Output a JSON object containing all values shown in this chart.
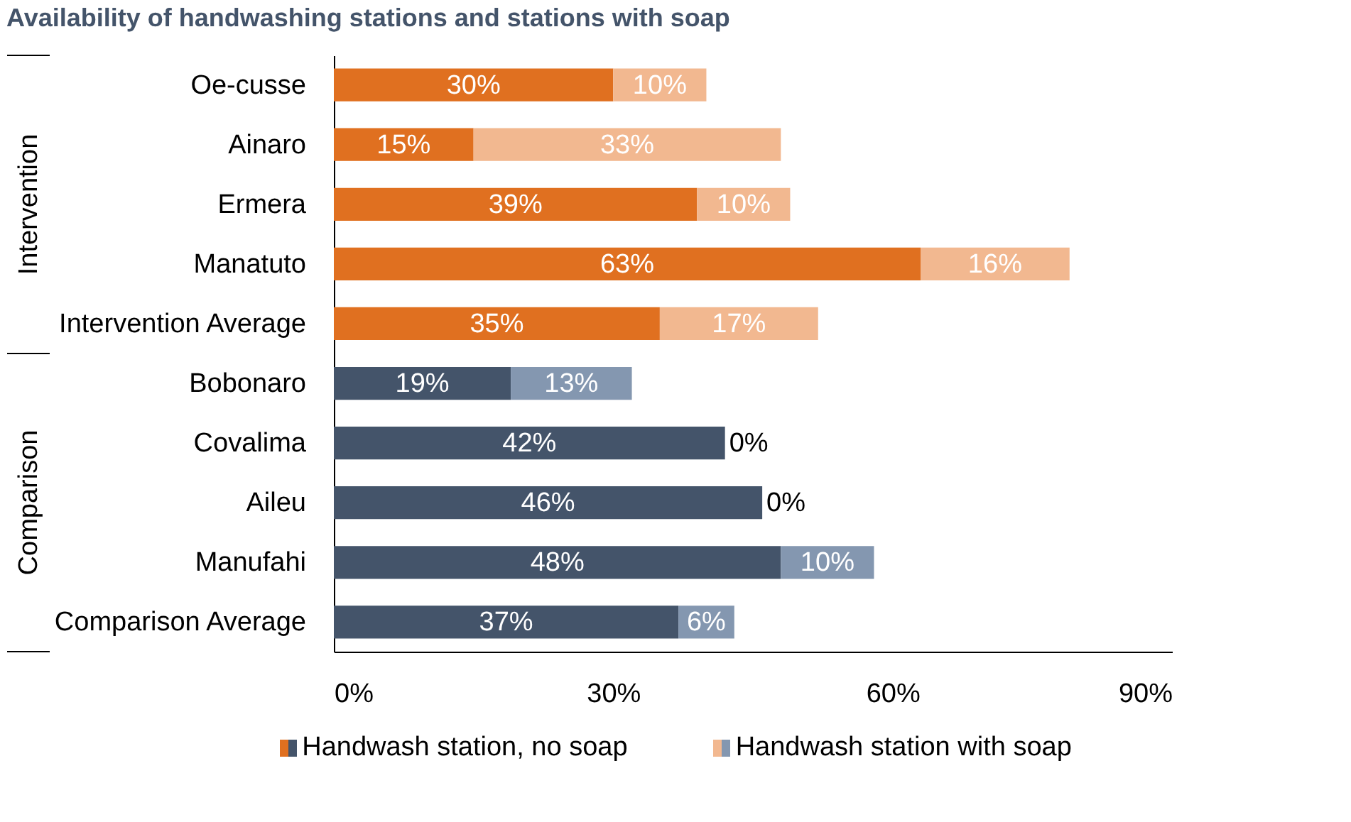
{
  "chart_data": {
    "type": "bar",
    "orientation": "horizontal",
    "stacked": true,
    "title": "Availability of handwashing stations and stations with soap",
    "categories": [
      "Oe-cusse",
      "Ainaro",
      "Ermera",
      "Manatuto",
      "Intervention Average",
      "Bobonaro",
      "Covalima",
      "Aileu",
      "Manufahi",
      "Comparison Average"
    ],
    "series": [
      {
        "name": "Handwash station, no soap",
        "colors": [
          "#e07020",
          "#e07020",
          "#e07020",
          "#e07020",
          "#e07020",
          "#44546a",
          "#44546a",
          "#44546a",
          "#44546a",
          "#44546a"
        ],
        "values": [
          30,
          15,
          39,
          63,
          35,
          19,
          42,
          46,
          48,
          37
        ],
        "value_labels": [
          "30%",
          "15%",
          "39%",
          "63%",
          "35%",
          "19%",
          "42%",
          "46%",
          "48%",
          "37%"
        ]
      },
      {
        "name": "Handwash station with soap",
        "colors": [
          "#f2b890",
          "#f2b890",
          "#f2b890",
          "#f2b890",
          "#f2b890",
          "#8497b0",
          "#8497b0",
          "#8497b0",
          "#8497b0",
          "#8497b0"
        ],
        "values": [
          10,
          33,
          10,
          16,
          17,
          13,
          0,
          0,
          10,
          6
        ],
        "value_labels": [
          "10%",
          "33%",
          "10%",
          "16%",
          "17%",
          "13%",
          "0%",
          "0%",
          "10%",
          "6%"
        ]
      }
    ],
    "annotations": [
      "Intervention",
      "Comparison"
    ],
    "xlim": [
      0,
      90
    ],
    "xticks": [
      {
        "value": 0,
        "label": "0%"
      },
      {
        "value": 30,
        "label": "30%"
      },
      {
        "value": 60,
        "label": "60%"
      },
      {
        "value": 90,
        "label": "90%"
      }
    ],
    "grid": false,
    "legend": "bottom"
  }
}
